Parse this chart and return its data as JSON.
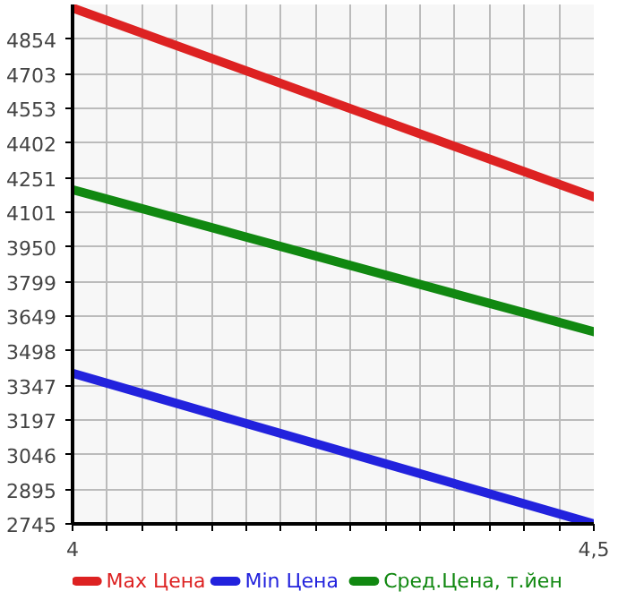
{
  "chart_data": {
    "type": "line",
    "x": [
      4,
      4.5
    ],
    "series": [
      {
        "name": "Max Цена",
        "color": "#dd2222",
        "values": [
          4990,
          4168
        ]
      },
      {
        "name": "Min Цена",
        "color": "#2222dd",
        "values": [
          3400,
          2745
        ]
      },
      {
        "name": "Сред.Цена, т.йен",
        "color": "#118811",
        "values": [
          4199,
          3581
        ]
      }
    ],
    "xlim": [
      4,
      4.5
    ],
    "xticks": [
      {
        "value": 4,
        "label": "4"
      },
      {
        "value": 4.0333,
        "label": null
      },
      {
        "value": 4.0667,
        "label": null
      },
      {
        "value": 4.1,
        "label": null
      },
      {
        "value": 4.1333,
        "label": null
      },
      {
        "value": 4.1667,
        "label": null
      },
      {
        "value": 4.2,
        "label": null
      },
      {
        "value": 4.2333,
        "label": null
      },
      {
        "value": 4.2667,
        "label": null
      },
      {
        "value": 4.3,
        "label": null
      },
      {
        "value": 4.3333,
        "label": null
      },
      {
        "value": 4.3667,
        "label": null
      },
      {
        "value": 4.4,
        "label": null
      },
      {
        "value": 4.4333,
        "label": null
      },
      {
        "value": 4.4667,
        "label": null
      },
      {
        "value": 4.5,
        "label": "4,5"
      }
    ],
    "ylim": [
      2745,
      5005
    ],
    "yticks": [
      2745,
      2895,
      3046,
      3197,
      3347,
      3498,
      3649,
      3799,
      3950,
      4101,
      4251,
      4402,
      4553,
      4703,
      4854
    ],
    "grid": true,
    "legend": "bottom",
    "marker": "none",
    "line_style": "solid"
  }
}
